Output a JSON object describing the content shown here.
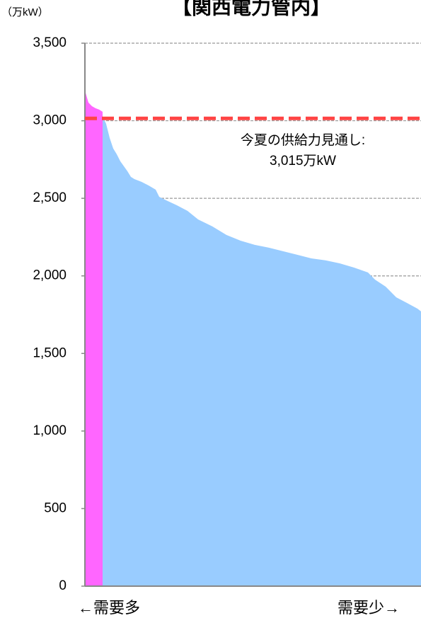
{
  "chart_data": {
    "type": "area",
    "title": "【関西電力管内】",
    "y_label": "（万kW）",
    "x_left_label": "←需要多",
    "x_right_label": "需要少→",
    "xlim": [
      0,
      95
    ],
    "ylim": [
      0,
      3500
    ],
    "yticks": [
      0,
      500,
      {
        "value": 1000,
        "label": "1,000"
      },
      {
        "value": 1500,
        "label": "1,500"
      },
      {
        "value": 2000,
        "label": "2,000"
      },
      {
        "value": 2500,
        "label": "2,500"
      },
      {
        "value": 3000,
        "label": "3,000"
      },
      {
        "value": 3500,
        "label": "3,500"
      }
    ],
    "grid": true,
    "series": [
      {
        "color": "#ff66ff",
        "x": [
          0,
          1,
          2,
          3,
          4,
          5
        ],
        "values": [
          3195,
          3117,
          3094,
          3081,
          3072,
          3058
        ]
      },
      {
        "color": "#99ccff",
        "x": [
          5,
          6,
          7,
          8,
          9,
          10,
          11,
          12,
          13,
          14,
          16,
          18,
          20,
          21,
          23,
          26,
          29,
          32,
          36,
          40,
          44,
          48,
          52,
          56,
          60,
          64,
          68,
          72,
          76,
          80,
          82,
          85,
          88,
          91,
          94,
          95
        ],
        "values": [
          3030,
          2980,
          2889,
          2821,
          2784,
          2739,
          2707,
          2675,
          2638,
          2624,
          2606,
          2583,
          2556,
          2510,
          2487,
          2455,
          2419,
          2364,
          2319,
          2264,
          2227,
          2200,
          2182,
          2159,
          2136,
          2113,
          2100,
          2081,
          2054,
          2022,
          1976,
          1931,
          1862,
          1826,
          1789,
          1771
        ]
      }
    ],
    "supply": {
      "value": 3015,
      "color": "#ff4444",
      "label_lines": [
        "今夏の供給力見通し:",
        "3,015万kW"
      ]
    }
  }
}
